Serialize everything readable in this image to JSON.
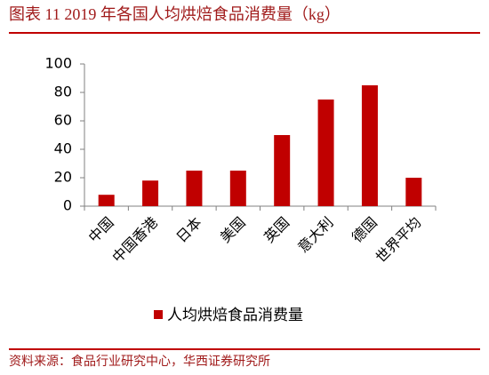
{
  "chart_data": {
    "type": "bar",
    "title": "图表 11   2019 年各国人均烘焙食品消费量（kg）",
    "categories": [
      "中国",
      "中国香港",
      "日本",
      "美国",
      "英国",
      "意大利",
      "德国",
      "世界平均"
    ],
    "series": [
      {
        "name": "人均烘焙食品消费量",
        "color": "#c00000",
        "values": [
          8,
          18,
          25,
          25,
          50,
          75,
          85,
          20
        ]
      }
    ],
    "ylim": [
      0,
      100
    ],
    "yticks": [
      0,
      20,
      40,
      60,
      80,
      100
    ],
    "grid": false,
    "legend": "bottom",
    "source": "资料来源：食品行业研究中心，华西证券研究所"
  }
}
